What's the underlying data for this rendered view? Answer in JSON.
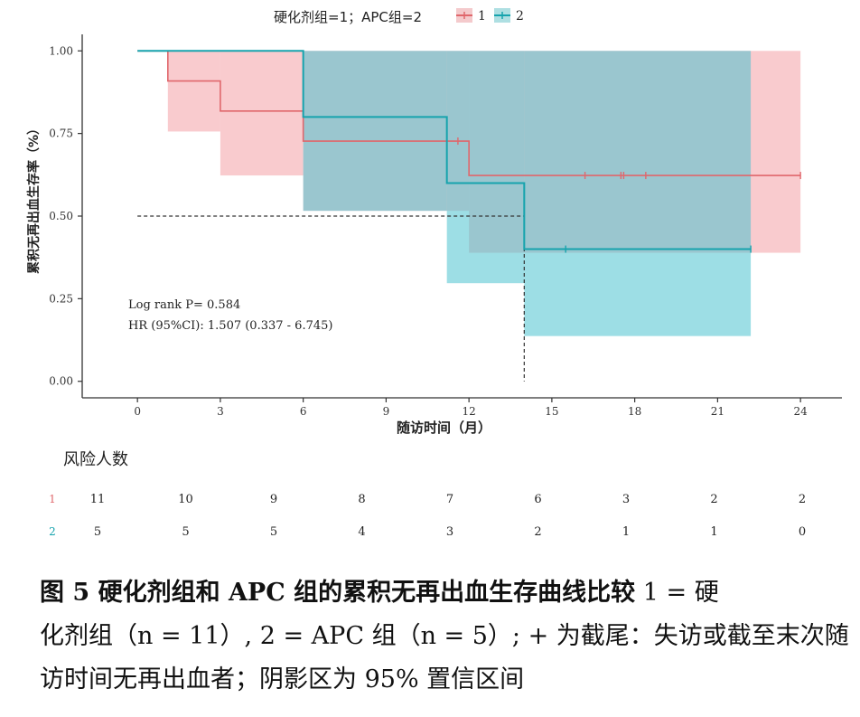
{
  "chart_data": {
    "type": "kaplan-meier",
    "legend": {
      "title": "硬化剂组=1；APC组=2",
      "items": [
        {
          "label": "1",
          "color": "#e0676c"
        },
        {
          "label": "2",
          "color": "#16a3ad"
        }
      ],
      "position": "top"
    },
    "xlabel": "随访时间（月）",
    "ylabel": "累积无再出血生存率（%）",
    "xlim": [
      -2,
      25.5
    ],
    "ylim": [
      -0.05,
      1.05
    ],
    "xticks": [
      0,
      3,
      6,
      9,
      12,
      15,
      18,
      21,
      24
    ],
    "yticks": [
      0.0,
      0.25,
      0.5,
      0.75,
      1.0
    ],
    "ytick_labels": [
      "0.00",
      "0.25",
      "0.50",
      "0.75",
      "1.00"
    ],
    "grid": false,
    "annotations": [
      {
        "text": "Log rank P= 0.584"
      },
      {
        "text": "HR (95%CI): 1.507 (0.337 - 6.745)"
      }
    ],
    "median_line": {
      "y": 0.5,
      "x": 14.0
    },
    "series": [
      {
        "name": "1",
        "color": "#e0676c",
        "band_color": "#f4a0a6",
        "steps": [
          {
            "x0": 0,
            "x1": 1.1,
            "y": 1.0,
            "lo": 1.0,
            "hi": 1.0
          },
          {
            "x0": 1.1,
            "x1": 3.0,
            "y": 0.909,
            "lo": 0.756,
            "hi": 1.0
          },
          {
            "x0": 3.0,
            "x1": 6.0,
            "y": 0.818,
            "lo": 0.623,
            "hi": 1.0
          },
          {
            "x0": 6.0,
            "x1": 12.0,
            "y": 0.727,
            "lo": 0.516,
            "hi": 1.0
          },
          {
            "x0": 12.0,
            "x1": 24.0,
            "y": 0.623,
            "lo": 0.389,
            "hi": 1.0
          }
        ],
        "censors": [
          11.6,
          16.2,
          17.5,
          17.6,
          18.4,
          24.0
        ]
      },
      {
        "name": "2",
        "color": "#16a3ad",
        "band_color": "#4cc3cf",
        "steps": [
          {
            "x0": 0,
            "x1": 6.0,
            "y": 1.0,
            "lo": 1.0,
            "hi": 1.0
          },
          {
            "x0": 6.0,
            "x1": 11.2,
            "y": 0.8,
            "lo": 0.516,
            "hi": 1.0
          },
          {
            "x0": 11.2,
            "x1": 14.0,
            "y": 0.6,
            "lo": 0.297,
            "hi": 1.0
          },
          {
            "x0": 14.0,
            "x1": 22.2,
            "y": 0.4,
            "lo": 0.137,
            "hi": 1.0
          }
        ],
        "censors": [
          15.5,
          22.2
        ]
      }
    ],
    "risk_table": {
      "title": "风险人数",
      "times": [
        0,
        3,
        6,
        9,
        12,
        15,
        18,
        21,
        24
      ],
      "rows": [
        {
          "label": "1",
          "color": "#e0676c",
          "values": [
            "11",
            "10",
            "9",
            "8",
            "7",
            "6",
            "3",
            "2",
            "2"
          ]
        },
        {
          "label": "2",
          "color": "#16a3ad",
          "values": [
            "5",
            "5",
            "5",
            "4",
            "3",
            "2",
            "1",
            "1",
            "0"
          ]
        }
      ]
    }
  },
  "caption": {
    "line1_prefix": "图 5 硬化剂组和 APC 组的累积无再出血生存曲线比较",
    "line1_suffix": "  1 = 硬",
    "line2": "化剂组（n = 11）, 2 = APC 组（n = 5）; + 为截尾：失访或截至末次随",
    "line3": "访时间无再出血者；阴影区为 95% 置信区间"
  }
}
